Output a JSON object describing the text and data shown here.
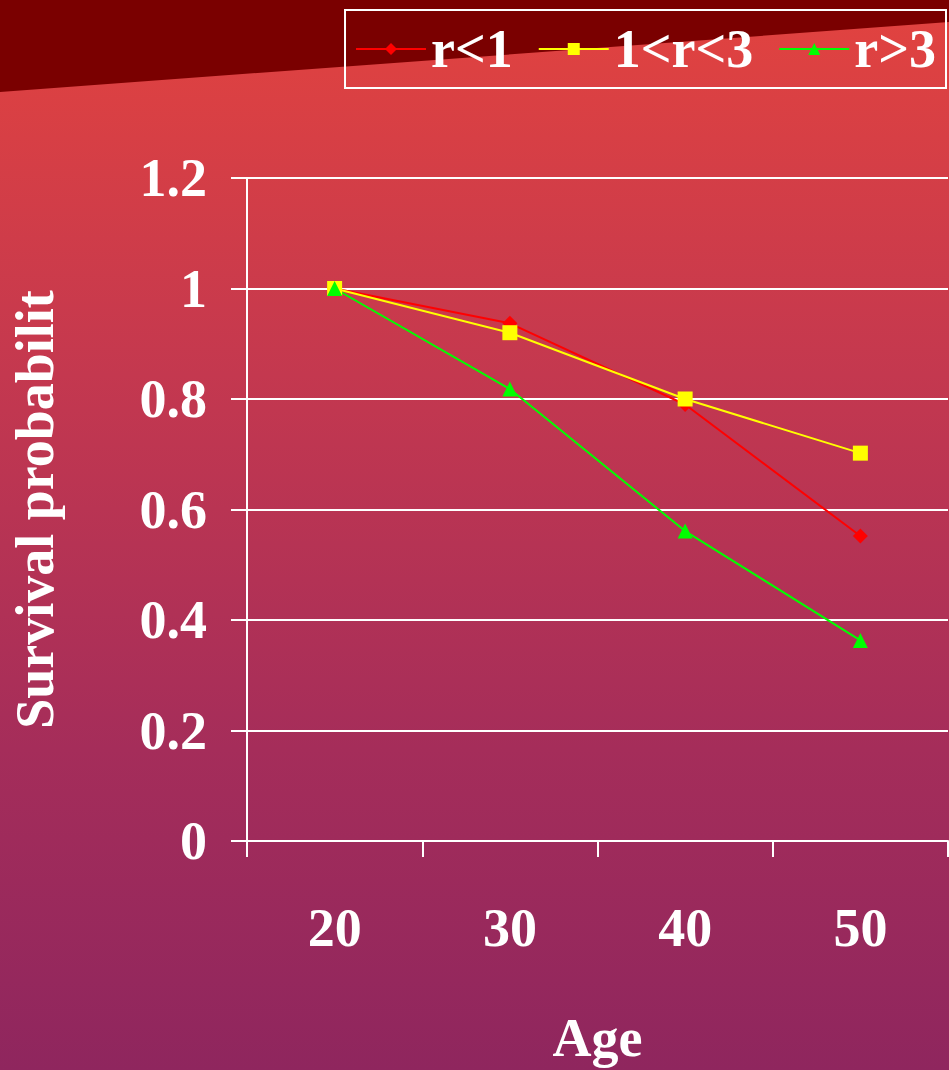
{
  "chart_data": {
    "type": "line",
    "xlabel": "Age",
    "ylabel": "Survival probabilit",
    "categories": [
      "20",
      "30",
      "40",
      "50"
    ],
    "series": [
      {
        "name": "r<1",
        "color": "#ff0000",
        "marker": "diamond",
        "values": [
          1,
          0.937,
          0.79,
          0.552
        ]
      },
      {
        "name": "1<r<3",
        "color": "#ffff00",
        "marker": "square",
        "values": [
          1,
          0.92,
          0.8,
          0.702
        ]
      },
      {
        "name": "r>3",
        "color": "#00ff00",
        "marker": "triangle",
        "values": [
          1,
          0.818,
          0.561,
          0.363
        ]
      }
    ],
    "ylim": [
      0,
      1.2
    ],
    "yticks": [
      0,
      0.2,
      0.4,
      0.6,
      0.8,
      1,
      1.2
    ],
    "grid": "y",
    "legend": "top right",
    "line_style": "solid"
  }
}
